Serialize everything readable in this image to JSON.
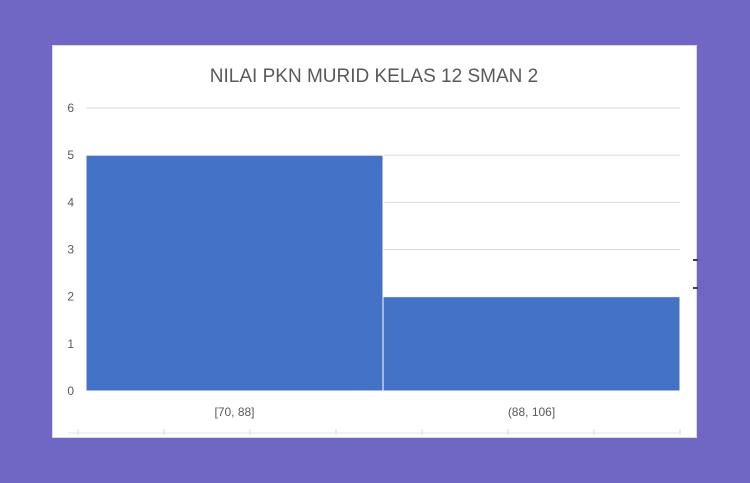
{
  "chart_data": {
    "type": "bar",
    "title": "NILAI PKN MURID KELAS 12 SMAN 2",
    "categories": [
      "[70, 88]",
      "(88, 106]"
    ],
    "values": [
      5,
      2
    ],
    "xlabel": "",
    "ylabel": "",
    "ylim": [
      0,
      6
    ],
    "yticks": [
      0,
      1,
      2,
      3,
      4,
      5,
      6
    ],
    "grid": true,
    "legend": "none",
    "bar_color": "#4472c4"
  }
}
